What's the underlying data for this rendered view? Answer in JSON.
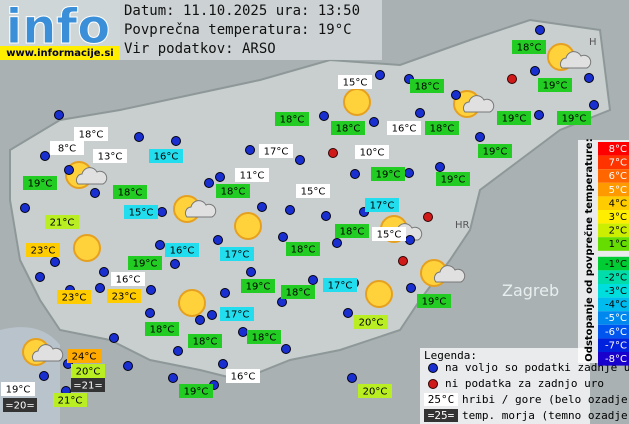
{
  "logo": {
    "text": "info",
    "url": "www.informacije.si"
  },
  "header": {
    "date_line": "Datum: 11.10.2025 ura: 13:50",
    "avg_line": "Povprečna temperatura: 19°C",
    "source_line": "Vir podatkov: ARSO"
  },
  "map_labels": [
    "Zagreb",
    "HR",
    "H"
  ],
  "stations": [
    "18°C",
    "15°C",
    "18°C",
    "19°C",
    "18°C",
    "18°C",
    "16°C",
    "18°C",
    "19°C",
    "19°C",
    "18°C",
    "8°C",
    "13°C",
    "16°C",
    "17°C",
    "10°C",
    "19°C",
    "19°C",
    "11°C",
    "18°C",
    "18°C",
    "15°C",
    "19°C",
    "19°C",
    "15°C",
    "17°C",
    "21°C",
    "18°C",
    "15°C",
    "23°C",
    "16°C",
    "17°C",
    "18°C",
    "19°C",
    "16°C",
    "23°C",
    "23°C",
    "19°C",
    "18°C",
    "17°C",
    "19°C",
    "17°C",
    "20°C",
    "18°C",
    "18°C",
    "18°C",
    "24°C",
    "20°C",
    "16°C",
    "19°C",
    "=21=",
    "21°C",
    "19°C",
    "20°C",
    "=20="
  ],
  "scale": {
    "title": "Odstopanje od povprečne temperature:",
    "labels": [
      "8°C",
      "7°C",
      "6°C",
      "5°C",
      "4°C",
      "3°C",
      "2°C",
      "1°C",
      "-1°C",
      "-2°C",
      "-3°C",
      "-4°C",
      "-5°C",
      "-6°C",
      "-7°C",
      "-8°C"
    ]
  },
  "legend": {
    "title": "Legenda:",
    "available": "na voljo so podatki zadnje ure",
    "missing": "ni podatka za zadnjo uro",
    "mountain_sample": "25°C",
    "mountain": "hribi / gore (belo ozadje)",
    "sea_sample": "=25=",
    "sea": "temp. morja (temno ozadje)"
  }
}
